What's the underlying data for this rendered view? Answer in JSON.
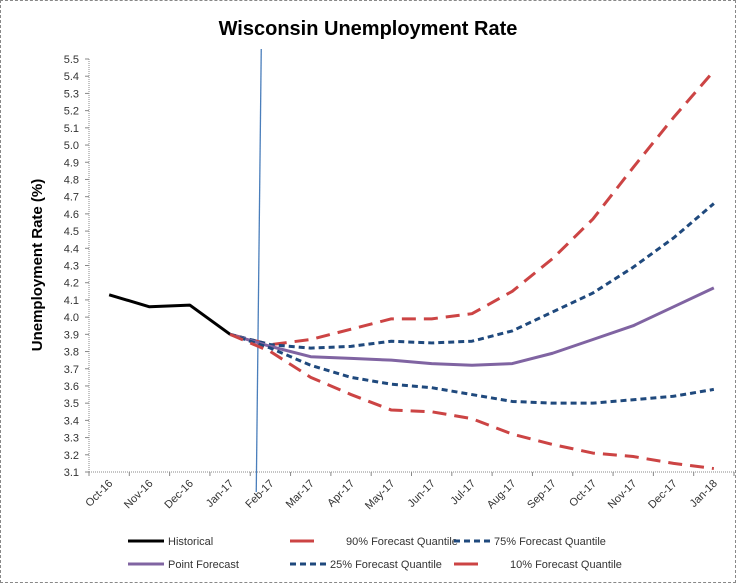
{
  "chart_data": {
    "type": "line",
    "title": "Wisconsin Unemployment Rate",
    "xlabel": "",
    "ylabel": "Unemployment Rate (%)",
    "ylim": [
      3.1,
      5.5
    ],
    "ytick_step": 0.1,
    "grid": false,
    "legend_position": "bottom",
    "categories": [
      "Oct-16",
      "Nov-16",
      "Dec-16",
      "Jan-17",
      "Feb-17",
      "Mar-17",
      "Apr-17",
      "May-17",
      "Jun-17",
      "Jul-17",
      "Aug-17",
      "Sep-17",
      "Oct-17",
      "Nov-17",
      "Dec-17",
      "Jan-18"
    ],
    "forecast_start_marker": "Feb-17",
    "series": [
      {
        "name": "Historical",
        "color": "#000000",
        "dash": "solid",
        "values": [
          4.13,
          4.06,
          4.07,
          3.9,
          null,
          null,
          null,
          null,
          null,
          null,
          null,
          null,
          null,
          null,
          null,
          null
        ]
      },
      {
        "name": "90% Forecast Quantile",
        "color": "#cc4444",
        "dash": "long-dash",
        "values": [
          null,
          null,
          null,
          3.9,
          3.84,
          3.87,
          3.93,
          3.99,
          3.99,
          4.02,
          4.15,
          4.34,
          4.57,
          4.87,
          5.16,
          5.43
        ]
      },
      {
        "name": "75% Forecast Quantile",
        "color": "#1f497d",
        "dash": "short-dash",
        "values": [
          null,
          null,
          null,
          3.9,
          3.84,
          3.82,
          3.83,
          3.86,
          3.85,
          3.86,
          3.92,
          4.03,
          4.14,
          4.29,
          4.46,
          4.66
        ]
      },
      {
        "name": "Point Forecast",
        "color": "#8064a2",
        "dash": "solid",
        "values": [
          null,
          null,
          null,
          3.9,
          3.83,
          3.77,
          3.76,
          3.75,
          3.73,
          3.72,
          3.73,
          3.79,
          3.87,
          3.95,
          4.06,
          4.17
        ]
      },
      {
        "name": "25% Forecast Quantile",
        "color": "#1f497d",
        "dash": "short-dash",
        "values": [
          null,
          null,
          null,
          3.9,
          3.82,
          3.72,
          3.65,
          3.61,
          3.59,
          3.55,
          3.51,
          3.5,
          3.5,
          3.52,
          3.54,
          3.58
        ]
      },
      {
        "name": "10% Forecast Quantile",
        "color": "#cc4444",
        "dash": "long-dash",
        "values": [
          null,
          null,
          null,
          3.9,
          3.8,
          3.65,
          3.55,
          3.46,
          3.45,
          3.41,
          3.32,
          3.26,
          3.21,
          3.19,
          3.15,
          3.12
        ]
      }
    ],
    "legend_order": [
      "Historical",
      "90% Forecast Quantile",
      "75% Forecast Quantile",
      "Point Forecast",
      "25% Forecast Quantile",
      "10% Forecast Quantile"
    ],
    "vertical_line_color": "#4a7ebb"
  }
}
